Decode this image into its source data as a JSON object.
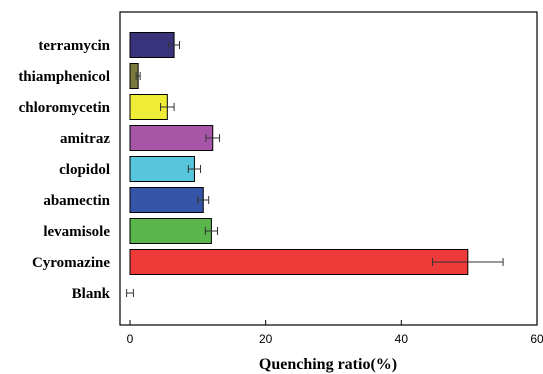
{
  "chart_data": {
    "type": "bar",
    "orientation": "horizontal",
    "title": "",
    "xlabel": "Quenching ratio(%)",
    "ylabel": "",
    "xlim": [
      0,
      60
    ],
    "xticks": [
      0,
      20,
      40,
      60
    ],
    "grid": false,
    "legend": "none",
    "categories": [
      "terramycin",
      "thiamphenicol",
      "chloromycetin",
      "amitraz",
      "clopidol",
      "abamectin",
      "levamisole",
      "Cyromazine",
      "Blank"
    ],
    "values": [
      6.5,
      1.2,
      5.5,
      12.2,
      9.5,
      10.8,
      12.0,
      49.8,
      0.0
    ],
    "errors": [
      0.8,
      0.3,
      1.0,
      1.0,
      0.9,
      0.8,
      0.9,
      5.2,
      0.5
    ],
    "colors": [
      "#38337a",
      "#7b7a3c",
      "#f0ed38",
      "#a857a8",
      "#57c5dc",
      "#3455a8",
      "#5ab64a",
      "#ef3a3a",
      "#ffffff"
    ]
  }
}
